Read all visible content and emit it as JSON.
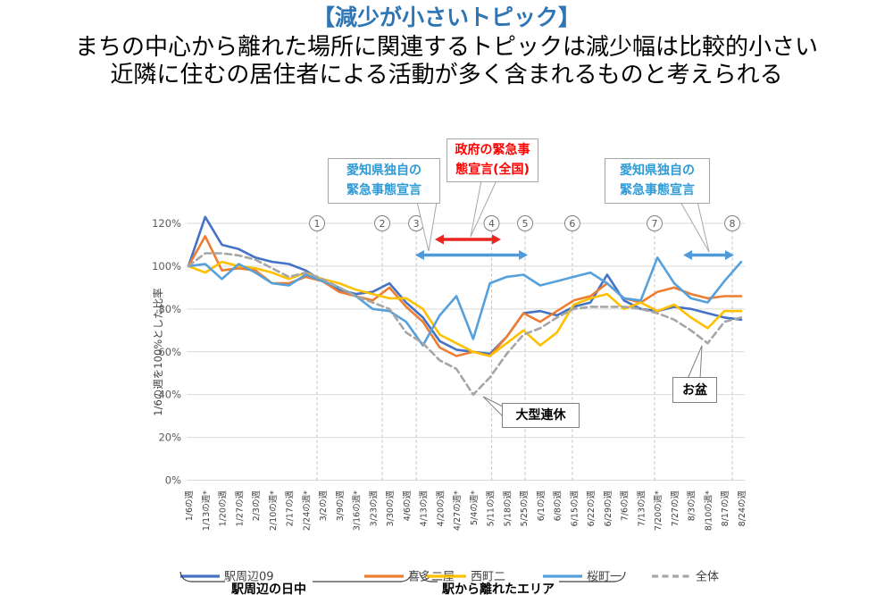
{
  "header": {
    "title": "【減少が小さいトピック】",
    "subtitle_line1": "まちの中心から離れた場所に関連するトピックは減少幅は比較的小さい",
    "subtitle_line2": "近隣に住むの居住者による活動が多く含まれるものと考えられる"
  },
  "chart_data": {
    "type": "line",
    "title": "",
    "xlabel": "",
    "ylabel": "1/6の週を100%とした比率",
    "ylim": [
      0,
      120
    ],
    "yticks": [
      0,
      20,
      40,
      60,
      80,
      100,
      120
    ],
    "ytick_suffix": "%",
    "grid": true,
    "legend_position": "bottom",
    "categories": [
      "1/6の週",
      "1/13の週*",
      "1/20の週",
      "1/27の週",
      "2/3の週",
      "2/10の週*",
      "2/17の週",
      "2/24の週*",
      "3/2の週",
      "3/9の週",
      "3/16の週*",
      "3/23の週",
      "3/30の週",
      "4/6の週",
      "4/13の週",
      "4/20の週",
      "4/27の週*",
      "5/4の週*",
      "5/11の週",
      "5/18の週",
      "5/25の週",
      "6/1の週",
      "6/8の週",
      "6/15の週",
      "6/22の週",
      "6/29の週",
      "7/6の週",
      "7/13の週",
      "7/20の週*",
      "7/27の週",
      "8/3の週",
      "8/10の週*",
      "8/17の週",
      "8/24の週"
    ],
    "series": [
      {
        "name": "駅周辺09",
        "color": "#4472C4",
        "dash": false,
        "values": [
          100,
          123,
          110,
          108,
          104,
          102,
          101,
          98,
          93,
          89,
          87,
          88,
          92,
          83,
          76,
          65,
          61,
          60,
          59,
          67,
          78,
          79,
          77,
          81,
          83,
          96,
          84,
          80,
          79,
          81,
          80,
          78,
          76,
          75
        ]
      },
      {
        "name": "喜多二屋",
        "color": "#ED7D31",
        "dash": false,
        "values": [
          100,
          114,
          98,
          99,
          98,
          92,
          92,
          95,
          93,
          88,
          86,
          84,
          90,
          81,
          74,
          62,
          58,
          60,
          58,
          67,
          78,
          74,
          79,
          84,
          86,
          92,
          85,
          83,
          88,
          90,
          87,
          85,
          86,
          86
        ]
      },
      {
        "name": "西町二",
        "color": "#FFC000",
        "dash": false,
        "values": [
          100,
          97,
          102,
          100,
          99,
          97,
          94,
          97,
          94,
          92,
          89,
          87,
          85,
          85,
          80,
          68,
          64,
          60,
          58,
          64,
          70,
          63,
          69,
          82,
          85,
          87,
          80,
          83,
          79,
          82,
          76,
          71,
          79,
          79
        ]
      },
      {
        "name": "桜町一",
        "color": "#56A0DB",
        "dash": false,
        "values": [
          100,
          101,
          94,
          101,
          97,
          92,
          91,
          96,
          93,
          90,
          86,
          80,
          79,
          74,
          63,
          77,
          86,
          66,
          92,
          95,
          96,
          91,
          93,
          95,
          97,
          92,
          85,
          84,
          104,
          92,
          85,
          83,
          93,
          102
        ]
      },
      {
        "name": "全体",
        "color": "#A6A6A6",
        "dash": true,
        "values": [
          100,
          106,
          106,
          105,
          103,
          99,
          95,
          97,
          94,
          90,
          86,
          83,
          80,
          69,
          64,
          56,
          52,
          40,
          48,
          59,
          68,
          71,
          76,
          80,
          81,
          81,
          81,
          80,
          78,
          75,
          70,
          64,
          74,
          76
        ]
      }
    ],
    "event_markers": [
      {
        "label": "1",
        "week_index": 7.68
      },
      {
        "label": "2",
        "week_index": 11.57
      },
      {
        "label": "3",
        "week_index": 13.6
      },
      {
        "label": "4",
        "week_index": 18.1
      },
      {
        "label": "5",
        "week_index": 20.1
      },
      {
        "label": "6",
        "week_index": 22.92
      },
      {
        "label": "7",
        "week_index": 27.83
      },
      {
        "label": "8",
        "week_index": 32.47
      }
    ],
    "arrows": [
      {
        "name": "government-emergency-span",
        "color": "#E8251F",
        "from_index": 14.71,
        "to_index": 18.66,
        "row": "upper"
      },
      {
        "name": "aichi-emergency-span-1",
        "color": "#4F9BD9",
        "from_index": 13.54,
        "to_index": 20.26,
        "row": "lower"
      },
      {
        "name": "aichi-emergency-span-2",
        "color": "#4F9BD9",
        "from_index": 29.54,
        "to_index": 32.57,
        "row": "lower"
      }
    ]
  },
  "callouts": {
    "aichi_left": {
      "line1": "愛知県独自の",
      "line2": "緊急事態宣言",
      "color": "#2F9BD6"
    },
    "gov_center": {
      "line1": "政府の緊急事",
      "line2": "態宣言(全国)",
      "color": "#FF0000"
    },
    "aichi_right": {
      "line1": "愛知県独自の",
      "line2": "緊急事態宣言",
      "color": "#2F9BD6"
    },
    "golden_week": {
      "label": "大型連休"
    },
    "obon": {
      "label": "お盆"
    }
  },
  "groups": {
    "group1": "駅周辺の日中",
    "group2": "駅から離れたエリア"
  },
  "colors": {
    "title_blue": "#2E75B6",
    "gridline": "#D9D9D9",
    "event_line": "#BFBFBF",
    "tick_text": "#595959"
  }
}
